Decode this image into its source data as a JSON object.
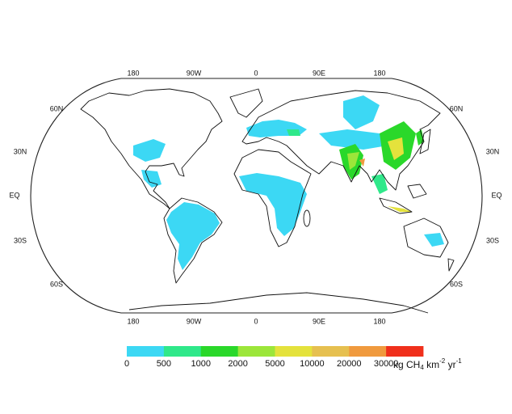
{
  "map": {
    "lon_labels_top": [
      "180",
      "90W",
      "0",
      "90E",
      "180"
    ],
    "lon_labels_bottom": [
      "180",
      "90W",
      "0",
      "90E",
      "180"
    ],
    "lat_labels_left": [
      "60N",
      "30N",
      "EQ",
      "30S",
      "60S"
    ],
    "lat_labels_right": [
      "60N",
      "30N",
      "EQ",
      "30S",
      "60S"
    ],
    "legend": {
      "colors": [
        "#3cd8f4",
        "#2fe88a",
        "#2ad82a",
        "#9ce63a",
        "#e4e23c",
        "#e6c050",
        "#f09a3e",
        "#f0301c"
      ],
      "ticks": [
        0,
        500,
        1000,
        2000,
        5000,
        10000,
        20000,
        30000
      ],
      "unit": {
        "base": "kg CH",
        "sub": "4",
        "mid": " km",
        "sup1": "-2",
        "end": " yr",
        "sup2": "-1"
      }
    }
  }
}
